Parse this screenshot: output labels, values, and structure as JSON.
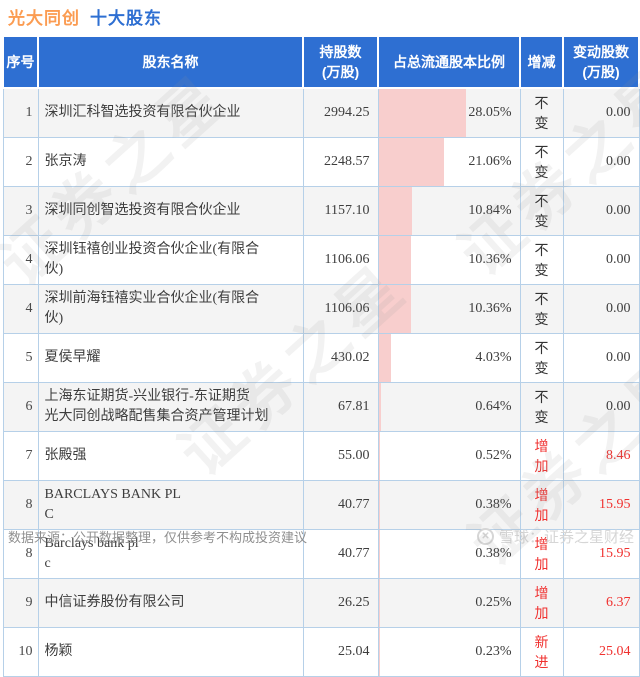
{
  "header": {
    "stock_name": "光大同创",
    "section_title": "十大股东"
  },
  "chart_data": {
    "type": "table",
    "title": "光大同创 十大股东",
    "columns": [
      "序号",
      "股东名称",
      "持股数\n(万股)",
      "占总流通股本比例",
      "增减",
      "变动股数\n(万股)"
    ],
    "bar_column": "占总流通股本比例",
    "bar_full_scale_pct": 45,
    "rows": [
      {
        "rank": "1",
        "name": "深圳汇科智选投资有限合伙企业",
        "shares": "2994.25",
        "pct": 28.05,
        "pct_label": "28.05%",
        "change": "不变",
        "change_shares": "0.00",
        "highlight": false
      },
      {
        "rank": "2",
        "name": "张京涛",
        "shares": "2248.57",
        "pct": 21.06,
        "pct_label": "21.06%",
        "change": "不变",
        "change_shares": "0.00",
        "highlight": false
      },
      {
        "rank": "3",
        "name": "深圳同创智选投资有限合伙企业",
        "shares": "1157.10",
        "pct": 10.84,
        "pct_label": "10.84%",
        "change": "不变",
        "change_shares": "0.00",
        "highlight": false
      },
      {
        "rank": "4",
        "name": "深圳钰禧创业投资合伙企业(有限合\n伙)",
        "shares": "1106.06",
        "pct": 10.36,
        "pct_label": "10.36%",
        "change": "不变",
        "change_shares": "0.00",
        "highlight": false
      },
      {
        "rank": "4",
        "name": "深圳前海钰禧实业合伙企业(有限合\n伙)",
        "shares": "1106.06",
        "pct": 10.36,
        "pct_label": "10.36%",
        "change": "不变",
        "change_shares": "0.00",
        "highlight": false
      },
      {
        "rank": "5",
        "name": "夏侯早耀",
        "shares": "430.02",
        "pct": 4.03,
        "pct_label": "4.03%",
        "change": "不变",
        "change_shares": "0.00",
        "highlight": false
      },
      {
        "rank": "6",
        "name": "上海东证期货-兴业银行-东证期货\n光大同创战略配售集合资产管理计划",
        "shares": "67.81",
        "pct": 0.64,
        "pct_label": "0.64%",
        "change": "不变",
        "change_shares": "0.00",
        "highlight": false
      },
      {
        "rank": "7",
        "name": "张殿强",
        "shares": "55.00",
        "pct": 0.52,
        "pct_label": "0.52%",
        "change": "增加",
        "change_shares": "8.46",
        "highlight": true
      },
      {
        "rank": "8",
        "name": "BARCLAYS BANK PL\nC",
        "shares": "40.77",
        "pct": 0.38,
        "pct_label": "0.38%",
        "change": "增加",
        "change_shares": "15.95",
        "highlight": true
      },
      {
        "rank": "8",
        "name": "Barclays bank pl\nc",
        "shares": "40.77",
        "pct": 0.38,
        "pct_label": "0.38%",
        "change": "增加",
        "change_shares": "15.95",
        "highlight": true
      },
      {
        "rank": "9",
        "name": "中信证券股份有限公司",
        "shares": "26.25",
        "pct": 0.25,
        "pct_label": "0.25%",
        "change": "增加",
        "change_shares": "6.37",
        "highlight": true
      },
      {
        "rank": "10",
        "name": "杨颖",
        "shares": "25.04",
        "pct": 0.23,
        "pct_label": "0.23%",
        "change": "新进",
        "change_shares": "25.04",
        "highlight": true
      }
    ]
  },
  "footer": {
    "source_note": "数据来源：公开数据整理，仅供参考不构成投资建议",
    "brand": "雪球：证券之星财经",
    "logo_icon": "xueqiu-camera-icon",
    "logo_glyph": "✕"
  },
  "watermark": {
    "text": "证券之星"
  },
  "colors": {
    "title_orange": "#fb9c52",
    "title_blue": "#2e6fd2",
    "header_bg": "#2e6fd2",
    "bar_pink": "#f8cecd",
    "increase_red": "#f0312f",
    "border_blue": "#b6d0e8",
    "row_alt_gray": "#f4f4f4",
    "footer_gray": "#8f8f8f",
    "brand_gray": "#d6d6d6"
  }
}
